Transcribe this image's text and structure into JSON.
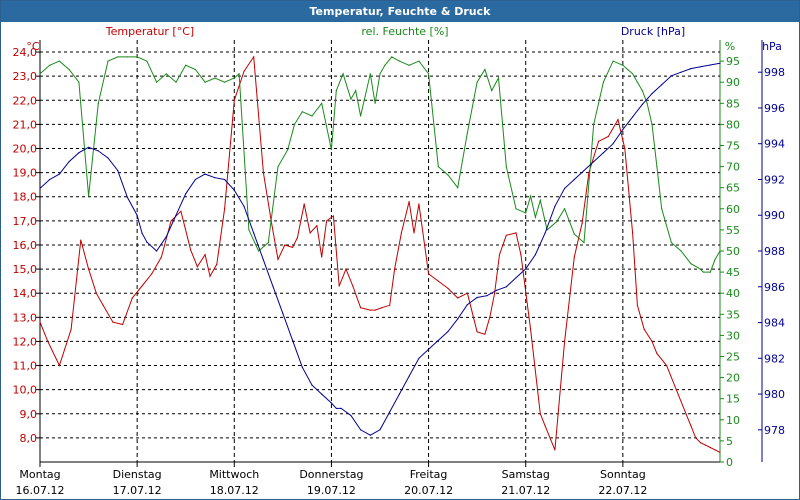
{
  "window": {
    "title": "Temperatur, Feuchte & Druck"
  },
  "colors": {
    "temperature": "#c00000",
    "humidity": "#1a8a1a",
    "pressure": "#000090",
    "grid": "#000000",
    "title_bg": "#2a6aa0"
  },
  "chart_data": {
    "type": "line",
    "grid": true,
    "axes": {
      "temperature": {
        "label": "Temperatur [°C]",
        "unit": "°C",
        "range": [
          7.0,
          24.5
        ],
        "ticks": [
          "8,0",
          "9,0",
          "10,0",
          "11,0",
          "12,0",
          "13,0",
          "14,0",
          "15,0",
          "16,0",
          "17,0",
          "18,0",
          "19,0",
          "20,0",
          "21,0",
          "22,0",
          "23,0",
          "24,0"
        ]
      },
      "humidity": {
        "label": "rel. Feuchte [%]",
        "unit": "%",
        "range": [
          0,
          100
        ],
        "ticks": [
          "0",
          "5",
          "10",
          "15",
          "20",
          "25",
          "30",
          "35",
          "40",
          "45",
          "50",
          "55",
          "60",
          "65",
          "70",
          "75",
          "80",
          "85",
          "90",
          "95"
        ]
      },
      "pressure": {
        "label": "Druck [hPa]",
        "unit": "hPa",
        "range": [
          976.2,
          999.8
        ],
        "ticks": [
          "978",
          "980",
          "982",
          "984",
          "986",
          "988",
          "990",
          "992",
          "994",
          "996",
          "998"
        ]
      }
    },
    "x_axis": {
      "unit": "days since 16.07.12 00:00",
      "range": [
        0,
        7
      ],
      "days": [
        {
          "weekday": "Montag",
          "date": "16.07.12"
        },
        {
          "weekday": "Dienstag",
          "date": "17.07.12"
        },
        {
          "weekday": "Mittwoch",
          "date": "18.07.12"
        },
        {
          "weekday": "Donnerstag",
          "date": "19.07.12"
        },
        {
          "weekday": "Freitag",
          "date": "20.07.12"
        },
        {
          "weekday": "Samstag",
          "date": "21.07.12"
        },
        {
          "weekday": "Sonntag",
          "date": "22.07.12"
        }
      ]
    },
    "series": [
      {
        "name": "Temperatur [°C]",
        "axis": "temperature",
        "color": "#c00000",
        "x": [
          0.0,
          0.08,
          0.2,
          0.32,
          0.42,
          0.5,
          0.58,
          0.65,
          0.75,
          0.85,
          0.95,
          1.05,
          1.15,
          1.25,
          1.35,
          1.45,
          1.55,
          1.62,
          1.7,
          1.75,
          1.82,
          1.9,
          2.0,
          2.1,
          2.2,
          2.3,
          2.38,
          2.45,
          2.52,
          2.6,
          2.65,
          2.72,
          2.78,
          2.85,
          2.9,
          2.95,
          3.02,
          3.08,
          3.15,
          3.22,
          3.3,
          3.4,
          3.45,
          3.52,
          3.6,
          3.65,
          3.72,
          3.8,
          3.85,
          3.9,
          4.0,
          4.1,
          4.2,
          4.3,
          4.4,
          4.5,
          4.58,
          4.63,
          4.68,
          4.73,
          4.8,
          4.9,
          4.95,
          5.05,
          5.15,
          5.2,
          5.3,
          5.4,
          5.5,
          5.58,
          5.65,
          5.75,
          5.85,
          5.95,
          6.02,
          6.1,
          6.15,
          6.22,
          6.3,
          6.35,
          6.45,
          6.55,
          6.65,
          6.7,
          6.75,
          6.8,
          6.85,
          6.9,
          6.95,
          7.0
        ],
        "values": [
          12.8,
          12.0,
          11.0,
          12.5,
          16.2,
          15.0,
          14.0,
          13.5,
          12.8,
          12.7,
          13.8,
          14.3,
          14.8,
          15.5,
          17.0,
          17.4,
          15.8,
          15.1,
          15.6,
          14.7,
          15.2,
          17.5,
          22.0,
          23.2,
          23.8,
          19.0,
          17.0,
          15.4,
          16.0,
          15.9,
          16.3,
          17.7,
          16.5,
          16.8,
          15.5,
          17.0,
          17.2,
          14.3,
          15.0,
          14.3,
          13.4,
          13.3,
          13.3,
          13.4,
          13.5,
          15.0,
          16.5,
          17.8,
          16.5,
          17.7,
          14.8,
          14.5,
          14.2,
          13.8,
          14.0,
          12.4,
          12.3,
          13.0,
          14.0,
          15.6,
          16.4,
          16.5,
          15.6,
          12.5,
          9.0,
          8.5,
          7.5,
          12.0,
          15.5,
          16.9,
          19.0,
          20.3,
          20.5,
          21.2,
          20.0,
          16.5,
          13.5,
          12.5,
          12.0,
          11.5,
          11.0,
          10.0,
          9.0,
          8.5,
          8.0,
          7.8,
          7.7,
          7.6,
          7.5,
          7.4
        ]
      },
      {
        "name": "rel. Feuchte [%]",
        "axis": "humidity",
        "color": "#1a8a1a",
        "x": [
          0.0,
          0.1,
          0.2,
          0.3,
          0.4,
          0.5,
          0.6,
          0.7,
          0.8,
          0.9,
          1.0,
          1.1,
          1.2,
          1.3,
          1.4,
          1.5,
          1.6,
          1.7,
          1.8,
          1.9,
          2.0,
          2.05,
          2.15,
          2.25,
          2.35,
          2.45,
          2.55,
          2.62,
          2.7,
          2.8,
          2.9,
          3.0,
          3.05,
          3.12,
          3.2,
          3.25,
          3.3,
          3.4,
          3.45,
          3.5,
          3.55,
          3.62,
          3.7,
          3.8,
          3.9,
          4.0,
          4.1,
          4.2,
          4.3,
          4.4,
          4.5,
          4.58,
          4.65,
          4.72,
          4.8,
          4.9,
          5.0,
          5.05,
          5.1,
          5.15,
          5.22,
          5.32,
          5.4,
          5.5,
          5.6,
          5.7,
          5.8,
          5.9,
          6.0,
          6.05,
          6.1,
          6.15,
          6.2,
          6.25,
          6.3,
          6.35,
          6.4,
          6.5,
          6.6,
          6.7,
          6.78,
          6.83,
          6.9,
          6.95,
          7.0
        ],
        "values": [
          92,
          94,
          95,
          93,
          90,
          63,
          85,
          95,
          96,
          96,
          96,
          95,
          90,
          92,
          90,
          94,
          93,
          90,
          91,
          90,
          91,
          92,
          55,
          50,
          52,
          70,
          74,
          80,
          83,
          82,
          85,
          74,
          88,
          92,
          86,
          88,
          82,
          92,
          85,
          92,
          94,
          96,
          95,
          94,
          95,
          92,
          70,
          68,
          65,
          78,
          90,
          93,
          88,
          91,
          70,
          60,
          59,
          63,
          58,
          62,
          55,
          57,
          60,
          54,
          52,
          80,
          90,
          95,
          94,
          93,
          92,
          90,
          88,
          85,
          80,
          70,
          60,
          52,
          50,
          47,
          46,
          45,
          45,
          48,
          50
        ]
      },
      {
        "name": "Druck [hPa]",
        "axis": "pressure",
        "color": "#000090",
        "x": [
          0.0,
          0.1,
          0.2,
          0.3,
          0.4,
          0.5,
          0.6,
          0.7,
          0.8,
          0.9,
          1.0,
          1.05,
          1.1,
          1.2,
          1.3,
          1.4,
          1.5,
          1.6,
          1.7,
          1.8,
          1.9,
          2.0,
          2.1,
          2.2,
          2.3,
          2.4,
          2.5,
          2.6,
          2.7,
          2.8,
          2.9,
          3.0,
          3.05,
          3.1,
          3.2,
          3.3,
          3.4,
          3.5,
          3.6,
          3.7,
          3.8,
          3.9,
          4.0,
          4.1,
          4.2,
          4.3,
          4.4,
          4.5,
          4.6,
          4.7,
          4.8,
          4.9,
          5.0,
          5.1,
          5.2,
          5.3,
          5.4,
          5.5,
          5.6,
          5.7,
          5.8,
          5.9,
          6.0,
          6.1,
          6.2,
          6.3,
          6.4,
          6.5,
          6.6,
          6.7,
          6.8,
          6.9,
          7.0
        ],
        "values": [
          991.5,
          992.0,
          992.3,
          993.0,
          993.5,
          993.8,
          993.6,
          993.2,
          992.5,
          991.0,
          990.0,
          989.0,
          988.5,
          988.0,
          988.8,
          990.0,
          991.2,
          992.0,
          992.3,
          992.1,
          992.0,
          991.4,
          990.5,
          989.0,
          987.5,
          986.0,
          984.5,
          983.0,
          981.5,
          980.5,
          980.0,
          979.5,
          979.2,
          979.2,
          978.8,
          978.0,
          977.7,
          978.0,
          979.0,
          980.0,
          981.0,
          982.0,
          982.5,
          983.0,
          983.5,
          984.2,
          985.0,
          985.4,
          985.5,
          985.8,
          986.0,
          986.5,
          987.0,
          987.8,
          989.0,
          990.5,
          991.5,
          992.0,
          992.5,
          993.0,
          993.5,
          994.0,
          994.8,
          995.5,
          996.2,
          996.8,
          997.3,
          997.8,
          998.0,
          998.2,
          998.3,
          998.4,
          998.5
        ]
      }
    ]
  }
}
